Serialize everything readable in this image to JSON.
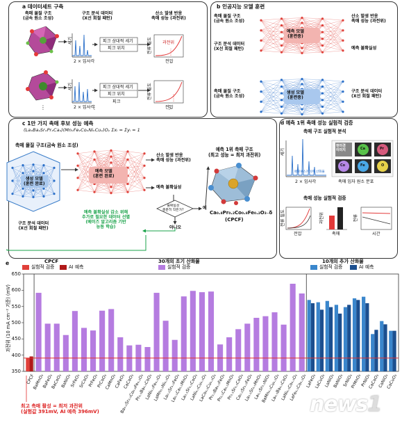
{
  "panel_a": {
    "title": "a 데이터세트 구축",
    "col1": "촉매 물질 구조\n(금속 원소 조성)",
    "col2": "구조 분석 데이터\n(X선 회절 패턴)",
    "col3": "산소 발생 반응\n촉매 성능 (과전위)",
    "axis_y": "세기",
    "axis_x": "2 × 입사각",
    "table_h1": "피크 상대적 세기",
    "table_h2": "피크 위치",
    "table_foot": "피크",
    "ov_label": "과전위",
    "ov_axis_y": "전류 밀도",
    "ov_axis_x": "전압",
    "dots": "⋮"
  },
  "panel_b": {
    "title": "b 인공지능 모델 훈련",
    "in1": "촉매 물질 구조\n(금속 원소 조성)",
    "in2": "구조 분석 데이터\n(X선 회절 패턴)",
    "model1": "예측 모델\n(훈련중)",
    "out1": "산소 발생 반응\n촉매 성능 (과전위)",
    "out2": "예측 불확실성",
    "in3": "촉매 물질 구조\n(금속 원소 조성)",
    "model2": "생성 모델\n(훈련중)",
    "out3": "구조 분석 데이터\n(X선 회절 패턴)"
  },
  "panel_c": {
    "title": "c 1만 가지 촉매 후보 성능 예측",
    "formula": "(LaₓBaᵧSrₓPrₓCaᵤ)(MnᵥFeᵥCoᵥNiᵥCuᵥ)Oᵧ   Σxᵢ = Σyᵢ = 1",
    "in1": "촉매 물질 구조(금속 원소 조성)",
    "gen_model": "생성 모델\n(훈련 완료)",
    "pred_model": "예측 모델\n(훈련 완료)",
    "out1": "산소 발생 반응\n촉매 성능 (과전위)",
    "out2": "예측 불확실성",
    "in2": "구조 분석 데이터\n(X선 회절 패턴)",
    "question": "불확실성\n충분히 작은가?",
    "yes": "예",
    "no": "아니오",
    "active": "예측 불확실성 감소 위해\n추가로 필요한 데이터 선별\n(베이즈 알고리즘 기반\n능동 학습)",
    "top1": "예측 1위 촉매 구조\n(최고 성능 = 최저 과전위)",
    "formula_cat": "Ca₀.₈Pr₀.₂Co₀.₈Fe₀.₂O₃₋δ",
    "abbr": "(CPCF)"
  },
  "panel_d": {
    "title": "d 예측 1위 촉매 성능 실험적 검증",
    "sub1": "촉매 구조 실험적 분석",
    "xrd_y": "세기",
    "xrd_x": "2 × 입사각",
    "perov": "페로브스카이트 산화물",
    "map_title": "촉매 입자 원소 분포",
    "map_items": [
      "현미경\n이미지",
      "Ca",
      "Pr",
      "Co",
      "Fe",
      "O"
    ],
    "sub2": "촉매 성능 실험적 검증",
    "p1_y": "전류 밀도",
    "p1_x": "전압",
    "p2_y": "과전위",
    "p2_x": "촉매",
    "p3_y": "전류",
    "p3_x": "시간"
  },
  "panel_e": {
    "label": "e",
    "ylabel": "과전위 (10 mA cm⁻² 기준) (mV)",
    "group1": "CPCF",
    "group2": "30개의 초기 산화물",
    "group3": "10개의 추가 산화물",
    "leg_exp": "실험적 검증",
    "leg_ai": "AI 예측",
    "note": "최고 촉매 활성 = 최저 과전위\n(실험값 391mV, AI 예측 396mV)",
    "colors": {
      "red_exp": "#e0403a",
      "red_ai": "#b01818",
      "purple": "#b57ce0",
      "blue_exp": "#3a86cc",
      "blue_ai": "#1c4f8f",
      "baseline": "#e23030"
    }
  },
  "chart_data": {
    "type": "bar",
    "ylabel": "과전위 (10 mA cm⁻² 기준) (mV)",
    "ylim": [
      350,
      650
    ],
    "yticks": [
      350,
      400,
      450,
      500,
      550,
      600,
      650
    ],
    "reference_line": 391,
    "groups": [
      {
        "name": "CPCF",
        "categories": [
          "CPCF"
        ],
        "series": [
          {
            "name": "실험적 검증",
            "values": [
              391
            ]
          },
          {
            "name": "AI 예측",
            "values": [
              396
            ]
          }
        ]
      },
      {
        "name": "30개의 초기 산화물",
        "categories": [
          "BaMnO₃",
          "BaFeO₃",
          "BaCoO₃",
          "BaNiO₃",
          "SrFeO₃",
          "SrCoO₃",
          "PrFeO₃",
          "PrCoO₃",
          "CaMnO₃",
          "CaFeO₃",
          "CaCoO₃",
          "Ba₀.₅Sr₀.₅Co₀.₈Fe₀.₂O₃",
          "Pr₀.₅Ba₀.₅CoO₃",
          "LaNi₀.₅Fe₀.₅O₃",
          "LaMn₀.₅Ni₀.₅O₃",
          "La₀.₅Sr₀.₅FeO₃",
          "La₀.₅Ca₀.₅MnO₃",
          "La₀.₅Sr₀.₅CoO₃",
          "LaNi₀.₅Cu₀.₅O₃",
          "LaCo₀.₅Cu₀.₅O₃",
          "Pr₀.₅Ba₀.₅FeO₃",
          "Pr₀.₅Ca₀.₅MnO₃",
          "Pr₀.₅Sr₀.₅CoO₃",
          "Ca₀.₅Sr₀.₅FeO₃",
          "La₀.₅Sr₀.₅MnO₃",
          "La₀.₅Sr₀.₅NiO₃",
          "BaMn₀.₅Cu₀.₅O₃",
          "La₀.₅Ba₀.₅CoO₃",
          "LaNi₀.₅Co₀.₅O₃",
          "LaFe₀.₅Co₀.₅O₃"
        ],
        "series": [
          {
            "name": "실험적 검증",
            "values": [
              592,
              497,
              497,
              462,
              536,
              484,
              476,
              537,
              542,
              455,
              430,
              432,
              425,
              592,
              506,
              447,
              581,
              598,
              594,
              596,
              433,
              455,
              480,
              497,
              515,
              520,
              532,
              494,
              620,
              590
            ]
          }
        ]
      },
      {
        "name": "10개의 추가 산화물",
        "categories": [
          "LaFeO₃",
          "LaCuO₃",
          "LaNiO₃",
          "BaNiO₃",
          "SrNiO₃",
          "PrMnO₃",
          "PrNiO₃",
          "CaCoO₃",
          "CaNiO₃",
          "CaCuO₃"
        ],
        "series": [
          {
            "name": "실험적 검증",
            "values": [
              570,
              563,
              567,
              555,
              548,
              575,
              580,
              465,
              505,
              475
            ]
          },
          {
            "name": "AI 예측",
            "values": [
              560,
              540,
              548,
              528,
              555,
              570,
              560,
              478,
              495,
              475
            ]
          }
        ]
      }
    ]
  }
}
